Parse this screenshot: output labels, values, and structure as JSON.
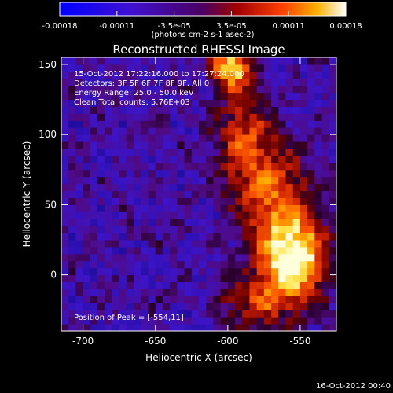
{
  "colorbar": {
    "tick_values": [
      "-0.00018",
      "-0.00011",
      "-3.5e-05",
      "3.5e-05",
      "0.00011",
      "0.00018"
    ],
    "unit_label": "(photons cm-2 s-1 asec-2)",
    "min": -0.00018,
    "max": 0.00018
  },
  "footer": {
    "timestamp": "16-Oct-2012 00:40"
  },
  "chart_data": {
    "type": "heatmap",
    "title": "Reconstructed RHESSI Image",
    "xlabel": "Heliocentric X (arcsec)",
    "ylabel": "Heliocentric Y (arcsec)",
    "xlim": [
      -715,
      -525
    ],
    "ylim": [
      -40,
      155
    ],
    "x_ticks": [
      -700,
      -650,
      -600,
      -550
    ],
    "y_ticks": [
      0,
      50,
      100,
      150
    ],
    "grid": false,
    "annotations": [
      "15-Oct-2012 17:22:16.000 to 17:27:24.000",
      "Detectors: 3F 5F 6F 7F 8F 9F, All 0",
      "Energy Range: 25.0 - 50.0 keV",
      "Clean     Total counts: 5.76E+03"
    ],
    "peak_label": "Position of Peak = [-554,11]",
    "peak_position": [
      -554,
      11
    ],
    "emission_regions": [
      {
        "x": -554,
        "y": 11,
        "sigma_x": 16,
        "sigma_y": 20,
        "amplitude": 1.0
      },
      {
        "x": -598,
        "y": 148,
        "sigma_x": 9,
        "sigma_y": 9,
        "amplitude": 0.85
      },
      {
        "x": -566,
        "y": 55,
        "sigma_x": 18,
        "sigma_y": 28,
        "amplitude": 0.55
      },
      {
        "x": -590,
        "y": 100,
        "sigma_x": 14,
        "sigma_y": 30,
        "amplitude": 0.5
      },
      {
        "x": -580,
        "y": -20,
        "sigma_x": 20,
        "sigma_y": 14,
        "amplitude": 0.45
      }
    ]
  }
}
